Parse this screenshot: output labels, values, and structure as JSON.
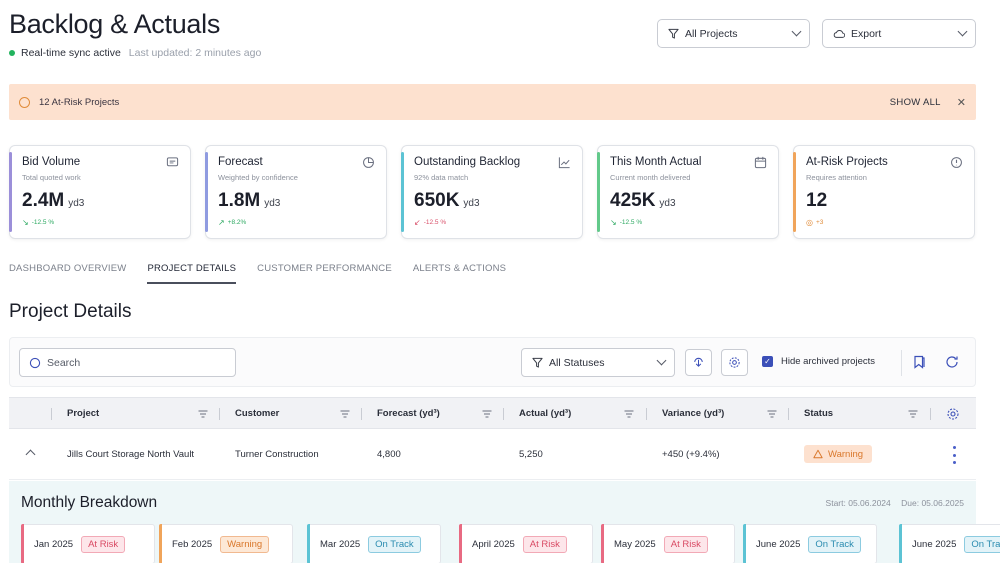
{
  "header": {
    "title": "Backlog & Actuals",
    "sync_status": "Real-time sync active",
    "last_updated": "Last updated: 2 minutes ago",
    "projects_filter": "All Projects",
    "export_label": "Export"
  },
  "alert": {
    "text": "12 At-Risk Projects",
    "action": "SHOW ALL",
    "close": "✕"
  },
  "kpis": [
    {
      "title": "Bid Volume",
      "subtitle": "Total quoted work",
      "value": "2.4M",
      "unit": "yd3",
      "trend": "-12.5 %",
      "accent": "#9b8fd9",
      "trend_color": "#2faa63"
    },
    {
      "title": "Forecast",
      "subtitle": "Weighted by confidence",
      "value": "1.8M",
      "unit": "yd3",
      "trend": "+8.2%",
      "accent": "#8f9be0",
      "trend_color": "#2faa63"
    },
    {
      "title": "Outstanding Backlog",
      "subtitle": "92% data match",
      "value": "650K",
      "unit": "yd3",
      "trend": "-12.5 %",
      "accent": "#5cc3d4",
      "trend_color": "#d9506a"
    },
    {
      "title": "This Month Actual",
      "subtitle": "Current month delivered",
      "value": "425K",
      "unit": "yd3",
      "trend": "-12.5 %",
      "accent": "#62c98a",
      "trend_color": "#2faa63"
    },
    {
      "title": "At-Risk Projects",
      "subtitle": "Requires attention",
      "value": "12",
      "unit": "",
      "trend": "+3",
      "accent": "#f0a45a",
      "trend_color": "#e08c3a"
    }
  ],
  "tabs": [
    "DASHBOARD OVERVIEW",
    "PROJECT DETAILS",
    "CUSTOMER PERFORMANCE",
    "ALERTS & ACTIONS"
  ],
  "section_title": "Project Details",
  "toolbar": {
    "search_placeholder": "Search",
    "status_filter": "All Statuses",
    "hide_archived": "Hide archived projects"
  },
  "table": {
    "columns": [
      "Project",
      "Customer",
      "Forecast (yd³)",
      "Actual (yd³)",
      "Variance (yd³)",
      "Status"
    ],
    "row": {
      "project": "Jills Court Storage North Vault",
      "customer": "Turner Construction",
      "forecast": "4,800",
      "actual": "5,250",
      "variance": "+450 (+9.4%)",
      "status": "Warning"
    }
  },
  "breakdown": {
    "title": "Monthly Breakdown",
    "start": "Start: 05.06.2024",
    "due": "Due: 05.06.2025",
    "months": [
      {
        "label": "Jan 2025",
        "status": "At Risk",
        "kind": "risk",
        "accent": "#e86a82"
      },
      {
        "label": "Feb 2025",
        "status": "Warning",
        "kind": "warn",
        "accent": "#f0a45a"
      },
      {
        "label": "Mar 2025",
        "status": "On Track",
        "kind": "track",
        "accent": "#5cc3d4"
      },
      {
        "label": "April 2025",
        "status": "At Risk",
        "kind": "risk",
        "accent": "#e86a82"
      },
      {
        "label": "May 2025",
        "status": "At Risk",
        "kind": "risk",
        "accent": "#e86a82"
      },
      {
        "label": "June 2025",
        "status": "On Track",
        "kind": "track",
        "accent": "#5cc3d4"
      },
      {
        "label": "June 2025",
        "status": "On Track",
        "kind": "track",
        "accent": "#5cc3d4"
      }
    ]
  }
}
